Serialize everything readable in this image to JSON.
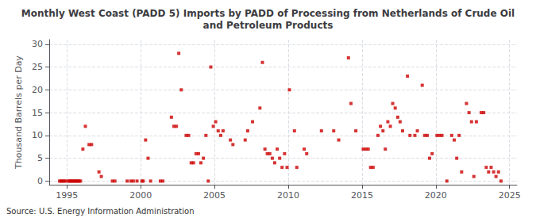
{
  "chart_data": {
    "type": "scatter",
    "title": "Monthly West Coast (PADD 5) Imports by PADD of Processing from Netherlands of Crude Oil\nand Petroleum Products",
    "ylabel": "Thousand Barrels per Day",
    "source": "Source: U.S. Energy Information Administration",
    "color": "#CC0000",
    "marker": "square",
    "grid": true,
    "xlim": [
      1993.8,
      2025.5
    ],
    "ylim": [
      -0.8,
      31
    ],
    "xticks": [
      1995,
      2000,
      2005,
      2010,
      2015,
      2020,
      2025
    ],
    "yticks": [
      0,
      5,
      10,
      15,
      20,
      25,
      30
    ],
    "x": [
      1994.5,
      1994.6,
      1994.7,
      1994.8,
      1994.9,
      1995.08,
      1995.17,
      1995.25,
      1995.33,
      1995.42,
      1995.5,
      1995.58,
      1995.67,
      1995.75,
      1995.83,
      1995.92,
      1996.08,
      1996.25,
      1996.5,
      1996.67,
      1997.17,
      1997.33,
      1998.08,
      1998.25,
      1999.08,
      1999.33,
      1999.5,
      1999.75,
      2000.08,
      2000.17,
      2000.33,
      2000.5,
      2000.67,
      2001.33,
      2001.5,
      2002.08,
      2002.25,
      2002.42,
      2002.58,
      2002.75,
      2003.08,
      2003.25,
      2003.42,
      2003.58,
      2003.75,
      2003.92,
      2004.08,
      2004.25,
      2004.42,
      2004.58,
      2004.75,
      2004.92,
      2005.08,
      2005.25,
      2005.42,
      2005.58,
      2006.08,
      2006.25,
      2007.08,
      2007.25,
      2007.58,
      2008.08,
      2008.25,
      2008.42,
      2008.58,
      2008.75,
      2008.92,
      2009.08,
      2009.25,
      2009.42,
      2009.58,
      2009.75,
      2009.92,
      2010.08,
      2010.42,
      2010.58,
      2011.08,
      2011.25,
      2012.25,
      2013.08,
      2013.42,
      2014.08,
      2014.25,
      2014.58,
      2015.08,
      2015.25,
      2015.42,
      2015.58,
      2015.75,
      2016.08,
      2016.25,
      2016.42,
      2016.58,
      2016.75,
      2016.92,
      2017.08,
      2017.25,
      2017.42,
      2017.58,
      2017.75,
      2018.08,
      2018.25,
      2018.58,
      2018.75,
      2019.08,
      2019.25,
      2019.42,
      2019.58,
      2019.75,
      2020.08,
      2020.25,
      2020.42,
      2020.75,
      2021.08,
      2021.25,
      2021.42,
      2021.58,
      2021.75,
      2022.08,
      2022.25,
      2022.42,
      2022.58,
      2022.75,
      2023.08,
      2023.25,
      2023.42,
      2023.58,
      2023.75,
      2023.92,
      2024.08,
      2024.25,
      2024.42
    ],
    "values": [
      0,
      0,
      0,
      0,
      0,
      0,
      0,
      0,
      0,
      0,
      0,
      0,
      0,
      0,
      0,
      0,
      7,
      12,
      8,
      8,
      2,
      1,
      0,
      0,
      0,
      0,
      0,
      0,
      0,
      0,
      9,
      5,
      0,
      0,
      0,
      14,
      12,
      12,
      28,
      20,
      10,
      10,
      4,
      4,
      6,
      6,
      4,
      5,
      10,
      0,
      25,
      12,
      13,
      11,
      10,
      11,
      9,
      8,
      9,
      11,
      13,
      16,
      26,
      7,
      6,
      6,
      5,
      4,
      7,
      5,
      3,
      6,
      3,
      20,
      11,
      3,
      7,
      6,
      11,
      11,
      9,
      27,
      17,
      11,
      7,
      7,
      7,
      3,
      3,
      10,
      12,
      11,
      7,
      13,
      12,
      17,
      16,
      14,
      13,
      11,
      23,
      10,
      10,
      11,
      21,
      10,
      10,
      5,
      6,
      10,
      10,
      10,
      0,
      10,
      9,
      5,
      10,
      2,
      17,
      15,
      13,
      1,
      13,
      15,
      15,
      3,
      2,
      3,
      2,
      1,
      2,
      0
    ]
  }
}
